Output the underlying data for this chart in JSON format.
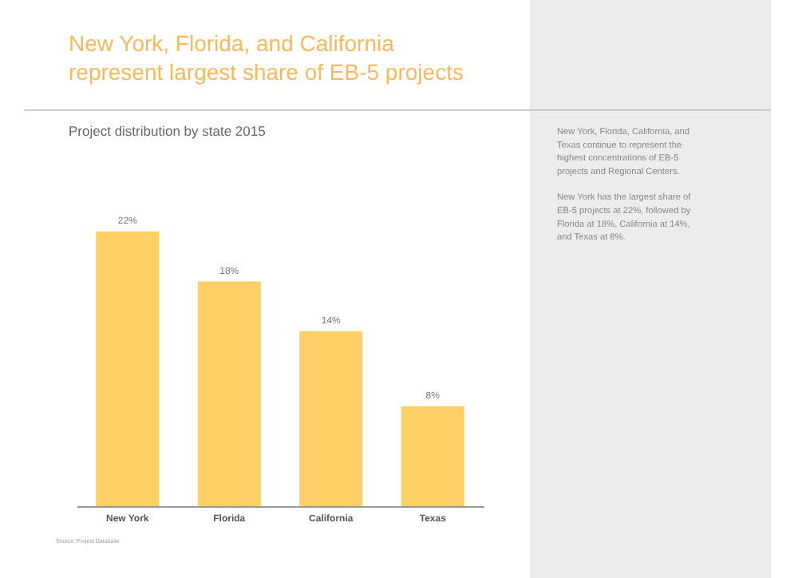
{
  "chart_data": {
    "type": "bar",
    "title": "New York, Florida, and California\nrepresent largest share of EB-5 projects",
    "subtitle": "Project distribution by state 2015",
    "categories": [
      "New York",
      "Florida",
      "California",
      "Texas"
    ],
    "values": [
      22,
      18,
      14,
      8
    ],
    "value_labels": [
      "22%",
      "18%",
      "14%",
      "8%"
    ],
    "color": "#fdd065",
    "annotations": [
      "New York, Florida, California, and Texas continue to represent the highest concentrations of EB-5 projects and Regional Centers.",
      "New York has the largest share of EB-5 projects at 22%, followed by Florida at 18%, California at 14%, and Texas at 8%.",
      "Source: Project Database"
    ]
  }
}
